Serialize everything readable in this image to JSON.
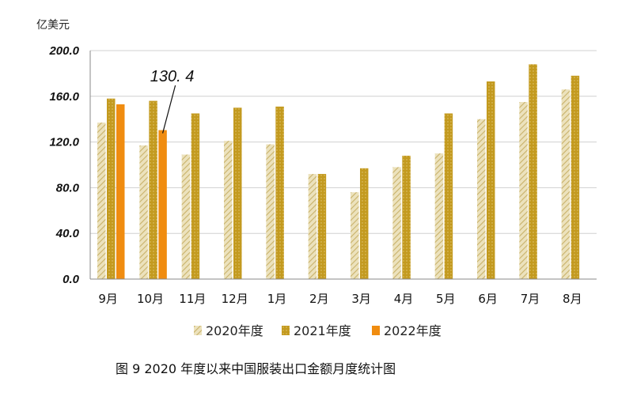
{
  "chart_data": {
    "type": "bar",
    "unit_label": "亿美元",
    "categories": [
      "9月",
      "10月",
      "11月",
      "12月",
      "1月",
      "2月",
      "3月",
      "4月",
      "5月",
      "6月",
      "7月",
      "8月"
    ],
    "series": [
      {
        "name": "2020年度",
        "color": "#d4c48a",
        "pattern": "diagonal-hatch",
        "values": [
          137,
          117,
          109,
          121,
          118,
          92,
          76,
          98,
          110,
          140,
          155,
          166
        ]
      },
      {
        "name": "2021年度",
        "color": "#c39a1f",
        "pattern": "dotted",
        "values": [
          158,
          156,
          145,
          150,
          151,
          92,
          97,
          108,
          145,
          173,
          188,
          178
        ]
      },
      {
        "name": "2022年度",
        "color": "#f08c10",
        "pattern": "solid",
        "values": [
          153,
          130.4,
          null,
          null,
          null,
          null,
          null,
          null,
          null,
          null,
          null,
          null
        ]
      }
    ],
    "yticks": [
      "0.0",
      "40.0",
      "80.0",
      "120.0",
      "160.0",
      "200.0"
    ],
    "ylim": [
      0,
      200
    ],
    "grid": true,
    "legend_position": "bottom",
    "annotation": {
      "text": "130. 4",
      "category": "10月",
      "series": "2022年度",
      "value": 130.4
    },
    "caption": "图 9   2020 年度以来中国服装出口金额月度统计图"
  }
}
